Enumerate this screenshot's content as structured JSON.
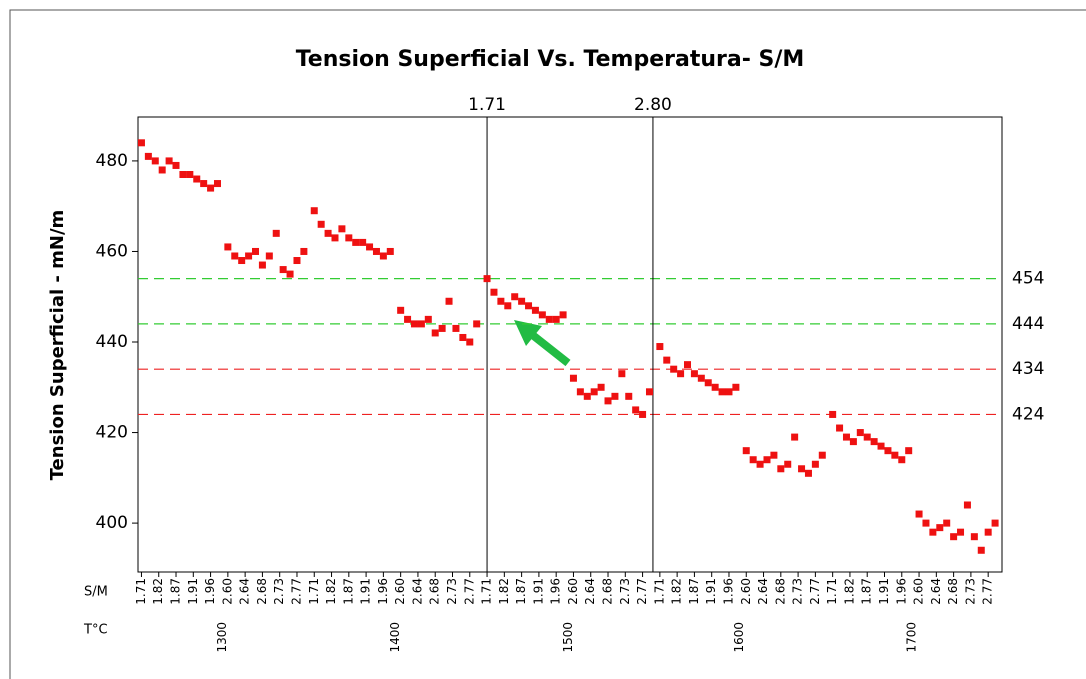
{
  "chart_data": {
    "type": "scatter",
    "title": "Tension Superficial Vs. Temperatura- S/M",
    "y_label": "Tension Superficial - mN/m",
    "x_row_labels": [
      "S/M",
      "T°C"
    ],
    "color": "#ee1111",
    "xlim": [
      -0.2,
      49.8
    ],
    "ylim": [
      389.2,
      489.7
    ],
    "yticks": [
      400,
      420,
      440,
      460,
      480
    ],
    "xticks": [
      {
        "value": 0,
        "label": "1.71"
      },
      {
        "value": 1,
        "label": "1.82"
      },
      {
        "value": 2,
        "label": "1.87"
      },
      {
        "value": 3,
        "label": "1.91"
      },
      {
        "value": 4,
        "label": "1.96"
      },
      {
        "value": 5,
        "label": "2.60"
      },
      {
        "value": 6,
        "label": "2.64"
      },
      {
        "value": 7,
        "label": "2.68"
      },
      {
        "value": 8,
        "label": "2.73"
      },
      {
        "value": 9,
        "label": "2.77"
      },
      {
        "value": 10,
        "label": "1.71"
      },
      {
        "value": 11,
        "label": "1.82"
      },
      {
        "value": 12,
        "label": "1.87"
      },
      {
        "value": 13,
        "label": "1.91"
      },
      {
        "value": 14,
        "label": "1.96"
      },
      {
        "value": 15,
        "label": "2.60"
      },
      {
        "value": 16,
        "label": "2.64"
      },
      {
        "value": 17,
        "label": "2.68"
      },
      {
        "value": 18,
        "label": "2.73"
      },
      {
        "value": 19,
        "label": "2.77"
      },
      {
        "value": 20,
        "label": "1.71"
      },
      {
        "value": 21,
        "label": "1.82"
      },
      {
        "value": 22,
        "label": "1.87"
      },
      {
        "value": 23,
        "label": "1.91"
      },
      {
        "value": 24,
        "label": "1.96"
      },
      {
        "value": 25,
        "label": "2.60"
      },
      {
        "value": 26,
        "label": "2.64"
      },
      {
        "value": 27,
        "label": "2.68"
      },
      {
        "value": 28,
        "label": "2.73"
      },
      {
        "value": 29,
        "label": "2.77"
      },
      {
        "value": 30,
        "label": "1.71"
      },
      {
        "value": 31,
        "label": "1.82"
      },
      {
        "value": 32,
        "label": "1.87"
      },
      {
        "value": 33,
        "label": "1.91"
      },
      {
        "value": 34,
        "label": "1.96"
      },
      {
        "value": 35,
        "label": "2.60"
      },
      {
        "value": 36,
        "label": "2.64"
      },
      {
        "value": 37,
        "label": "2.68"
      },
      {
        "value": 38,
        "label": "2.73"
      },
      {
        "value": 39,
        "label": "2.77"
      },
      {
        "value": 40,
        "label": "1.71"
      },
      {
        "value": 41,
        "label": "1.82"
      },
      {
        "value": 42,
        "label": "1.87"
      },
      {
        "value": 43,
        "label": "1.91"
      },
      {
        "value": 44,
        "label": "1.96"
      },
      {
        "value": 45,
        "label": "2.60"
      },
      {
        "value": 46,
        "label": "2.64"
      },
      {
        "value": 47,
        "label": "2.68"
      },
      {
        "value": 48,
        "label": "2.73"
      },
      {
        "value": 49,
        "label": "2.77"
      }
    ],
    "x2ticks": [
      {
        "value": 4.7,
        "label": "1300"
      },
      {
        "value": 14.7,
        "label": "1400"
      },
      {
        "value": 24.7,
        "label": "1500"
      },
      {
        "value": 34.6,
        "label": "1600"
      },
      {
        "value": 44.6,
        "label": "1700"
      }
    ],
    "vlines": [
      {
        "value": 20,
        "label": "1.71"
      },
      {
        "value": 29.6,
        "label": "2.80"
      }
    ],
    "hlines": [
      {
        "value": 454,
        "color": "#33cc33"
      },
      {
        "value": 444,
        "color": "#33cc33"
      },
      {
        "value": 434,
        "color": "#ee2222"
      },
      {
        "value": 424,
        "color": "#ee2222"
      }
    ],
    "x": [
      0,
      0.4,
      0.8,
      1.2,
      1.6,
      2,
      2.4,
      2.8,
      3.2,
      3.6,
      4,
      4.4,
      5,
      5.4,
      5.8,
      6.2,
      6.6,
      7,
      7.4,
      7.8,
      8.2,
      8.6,
      9,
      9.4,
      10,
      10.4,
      10.8,
      11.2,
      11.6,
      12,
      12.4,
      12.8,
      13.2,
      13.6,
      14,
      14.4,
      15,
      15.4,
      15.8,
      16.2,
      16.6,
      17,
      17.4,
      17.8,
      18.2,
      18.6,
      19,
      19.4,
      20,
      20.4,
      20.8,
      21.2,
      21.6,
      22,
      22.4,
      22.8,
      23.2,
      23.6,
      24,
      24.4,
      25,
      25.4,
      25.8,
      26.2,
      26.6,
      27,
      27.4,
      27.8,
      28.2,
      28.6,
      29,
      29.4,
      30,
      30.4,
      30.8,
      31.2,
      31.6,
      32,
      32.4,
      32.8,
      33.2,
      33.6,
      34,
      34.4,
      35,
      35.4,
      35.8,
      36.2,
      36.6,
      37,
      37.4,
      37.8,
      38.2,
      38.6,
      39,
      39.4,
      40,
      40.4,
      40.8,
      41.2,
      41.6,
      42,
      42.4,
      42.8,
      43.2,
      43.6,
      44,
      44.4,
      45,
      45.4,
      45.8,
      46.2,
      46.6,
      47,
      47.4,
      47.8,
      48.2,
      48.6,
      49,
      49.4
    ],
    "values": [
      484,
      481,
      480,
      478,
      480,
      479,
      477,
      477,
      476,
      475,
      474,
      475,
      461,
      459,
      458,
      459,
      460,
      457,
      459,
      464,
      456,
      455,
      458,
      460,
      469,
      466,
      464,
      463,
      465,
      463,
      462,
      462,
      461,
      460,
      459,
      460,
      447,
      445,
      444,
      444,
      445,
      442,
      443,
      449,
      443,
      441,
      440,
      444,
      454,
      451,
      449,
      448,
      450,
      449,
      448,
      447,
      446,
      445,
      445,
      446,
      432,
      429,
      428,
      429,
      430,
      427,
      428,
      433,
      428,
      425,
      424,
      429,
      439,
      436,
      434,
      433,
      435,
      433,
      432,
      431,
      430,
      429,
      429,
      430,
      416,
      414,
      413,
      414,
      415,
      412,
      413,
      419,
      412,
      411,
      413,
      415,
      424,
      421,
      419,
      418,
      420,
      419,
      418,
      417,
      416,
      415,
      414,
      416,
      402,
      400,
      398,
      399,
      400,
      397,
      398,
      404,
      397,
      394,
      398,
      400
    ]
  }
}
